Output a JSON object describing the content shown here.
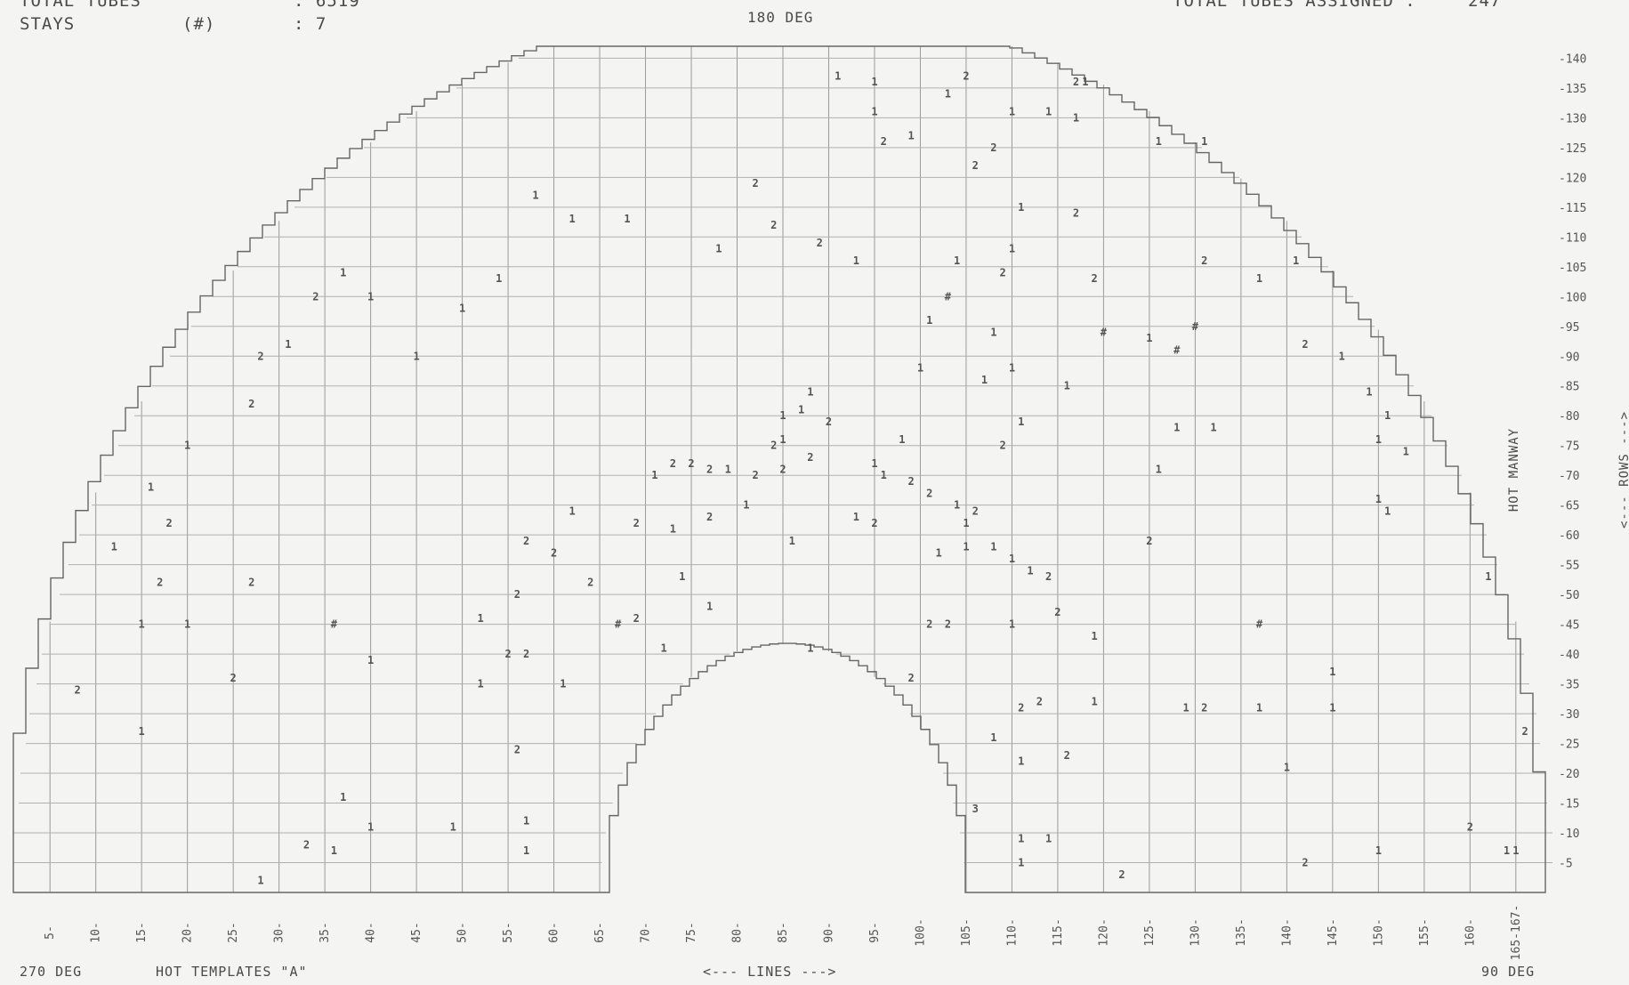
{
  "header": {
    "total_tubes_label": "TOTAL TUBES",
    "total_tubes_value": ": 6519",
    "stays_label": "STAYS",
    "stays_symbol": "(#)",
    "stays_value": ": 7",
    "top_angle": "180 DEG",
    "assigned_label": "TOTAL TUBES ASSIGNED :",
    "assigned_value": "247"
  },
  "footer": {
    "left_angle": "270 DEG",
    "template_name": "HOT TEMPLATES \"A\"",
    "lines_axis": "<--- LINES --->",
    "right_angle": "90 DEG"
  },
  "side": {
    "hot_manway": "HOT MANWAY",
    "rows_axis": "<--- ROWS --->"
  },
  "rows_axis_labels": [
    "-140",
    "-135",
    "-130",
    "-125",
    "-120",
    "-115",
    "-110",
    "-105",
    "-100",
    "-95",
    "-90",
    "-85",
    "-80",
    "-75",
    "-70",
    "-65",
    "-60",
    "-55",
    "-50",
    "-45",
    "-40",
    "-35",
    "-30",
    "-25",
    "-20",
    "-15",
    "-10",
    "-5"
  ],
  "lines_axis_labels": [
    "5-",
    "10-",
    "15-",
    "20-",
    "25-",
    "30-",
    "35-",
    "40-",
    "45-",
    "50-",
    "55-",
    "60-",
    "65-",
    "70-",
    "75-",
    "80-",
    "85-",
    "90-",
    "95-",
    "100-",
    "105-",
    "110-",
    "115-",
    "120-",
    "125-",
    "130-",
    "135-",
    "140-",
    "145-",
    "150-",
    "155-",
    "160-",
    "165-167-"
  ],
  "tube_marks": [
    {
      "line": 126,
      "row": 126,
      "label": "1"
    },
    {
      "line": 131,
      "row": 126,
      "label": "1"
    },
    {
      "line": 118,
      "row": 136,
      "label": "1"
    },
    {
      "line": 117,
      "row": 130,
      "label": "1"
    },
    {
      "line": 117,
      "row": 136,
      "label": "2"
    },
    {
      "line": 110,
      "row": 131,
      "label": "1"
    },
    {
      "line": 114,
      "row": 131,
      "label": "1"
    },
    {
      "line": 105,
      "row": 137,
      "label": "2"
    },
    {
      "line": 91,
      "row": 137,
      "label": "1"
    },
    {
      "line": 95,
      "row": 136,
      "label": "1"
    },
    {
      "line": 95,
      "row": 131,
      "label": "1"
    },
    {
      "line": 96,
      "row": 126,
      "label": "2"
    },
    {
      "line": 99,
      "row": 127,
      "label": "1"
    },
    {
      "line": 103,
      "row": 134,
      "label": "1"
    },
    {
      "line": 108,
      "row": 125,
      "label": "2"
    },
    {
      "line": 106,
      "row": 122,
      "label": "2"
    },
    {
      "line": 111,
      "row": 115,
      "label": "1"
    },
    {
      "line": 117,
      "row": 114,
      "label": "2"
    },
    {
      "line": 110,
      "row": 108,
      "label": "1"
    },
    {
      "line": 109,
      "row": 104,
      "label": "2"
    },
    {
      "line": 104,
      "row": 106,
      "label": "1"
    },
    {
      "line": 103,
      "row": 100,
      "label": "#"
    },
    {
      "line": 101,
      "row": 96,
      "label": "1"
    },
    {
      "line": 93,
      "row": 106,
      "label": "1"
    },
    {
      "line": 89,
      "row": 109,
      "label": "2"
    },
    {
      "line": 84,
      "row": 112,
      "label": "2"
    },
    {
      "line": 82,
      "row": 119,
      "label": "2"
    },
    {
      "line": 78,
      "row": 108,
      "label": "1"
    },
    {
      "line": 68,
      "row": 113,
      "label": "1"
    },
    {
      "line": 62,
      "row": 113,
      "label": "1"
    },
    {
      "line": 58,
      "row": 117,
      "label": "1"
    },
    {
      "line": 54,
      "row": 103,
      "label": "1"
    },
    {
      "line": 50,
      "row": 98,
      "label": "1"
    },
    {
      "line": 45,
      "row": 90,
      "label": "1"
    },
    {
      "line": 40,
      "row": 100,
      "label": "1"
    },
    {
      "line": 37,
      "row": 104,
      "label": "1"
    },
    {
      "line": 34,
      "row": 100,
      "label": "2"
    },
    {
      "line": 31,
      "row": 92,
      "label": "1"
    },
    {
      "line": 28,
      "row": 90,
      "label": "2"
    },
    {
      "line": 27,
      "row": 82,
      "label": "2"
    },
    {
      "line": 20,
      "row": 75,
      "label": "1"
    },
    {
      "line": 16,
      "row": 68,
      "label": "1"
    },
    {
      "line": 18,
      "row": 62,
      "label": "2"
    },
    {
      "line": 12,
      "row": 58,
      "label": "1"
    },
    {
      "line": 17,
      "row": 52,
      "label": "2"
    },
    {
      "line": 27,
      "row": 52,
      "label": "2"
    },
    {
      "line": 15,
      "row": 45,
      "label": "1"
    },
    {
      "line": 20,
      "row": 45,
      "label": "1"
    },
    {
      "line": 36,
      "row": 45,
      "label": "#"
    },
    {
      "line": 40,
      "row": 39,
      "label": "1"
    },
    {
      "line": 25,
      "row": 36,
      "label": "2"
    },
    {
      "line": 8,
      "row": 34,
      "label": "2"
    },
    {
      "line": 15,
      "row": 27,
      "label": "1"
    },
    {
      "line": 37,
      "row": 16,
      "label": "1"
    },
    {
      "line": 40,
      "row": 11,
      "label": "1"
    },
    {
      "line": 49,
      "row": 11,
      "label": "1"
    },
    {
      "line": 57,
      "row": 12,
      "label": "1"
    },
    {
      "line": 33,
      "row": 8,
      "label": "2"
    },
    {
      "line": 36,
      "row": 7,
      "label": "1"
    },
    {
      "line": 28,
      "row": 2,
      "label": "1"
    },
    {
      "line": 57,
      "row": 7,
      "label": "1"
    },
    {
      "line": 52,
      "row": 35,
      "label": "1"
    },
    {
      "line": 56,
      "row": 24,
      "label": "2"
    },
    {
      "line": 61,
      "row": 35,
      "label": "1"
    },
    {
      "line": 55,
      "row": 40,
      "label": "2"
    },
    {
      "line": 57,
      "row": 40,
      "label": "2"
    },
    {
      "line": 52,
      "row": 46,
      "label": "1"
    },
    {
      "line": 56,
      "row": 50,
      "label": "2"
    },
    {
      "line": 57,
      "row": 59,
      "label": "2"
    },
    {
      "line": 60,
      "row": 57,
      "label": "2"
    },
    {
      "line": 64,
      "row": 52,
      "label": "2"
    },
    {
      "line": 62,
      "row": 64,
      "label": "1"
    },
    {
      "line": 67,
      "row": 45,
      "label": "#"
    },
    {
      "line": 69,
      "row": 46,
      "label": "2"
    },
    {
      "line": 72,
      "row": 41,
      "label": "1"
    },
    {
      "line": 74,
      "row": 53,
      "label": "1"
    },
    {
      "line": 77,
      "row": 48,
      "label": "1"
    },
    {
      "line": 69,
      "row": 62,
      "label": "2"
    },
    {
      "line": 73,
      "row": 61,
      "label": "1"
    },
    {
      "line": 77,
      "row": 63,
      "label": "2"
    },
    {
      "line": 81,
      "row": 65,
      "label": "1"
    },
    {
      "line": 71,
      "row": 70,
      "label": "1"
    },
    {
      "line": 73,
      "row": 72,
      "label": "2"
    },
    {
      "line": 75,
      "row": 72,
      "label": "2"
    },
    {
      "line": 77,
      "row": 71,
      "label": "2"
    },
    {
      "line": 79,
      "row": 71,
      "label": "1"
    },
    {
      "line": 82,
      "row": 70,
      "label": "2"
    },
    {
      "line": 85,
      "row": 71,
      "label": "2"
    },
    {
      "line": 85,
      "row": 76,
      "label": "1"
    },
    {
      "line": 85,
      "row": 80,
      "label": "1"
    },
    {
      "line": 87,
      "row": 81,
      "label": "1"
    },
    {
      "line": 88,
      "row": 84,
      "label": "1"
    },
    {
      "line": 84,
      "row": 75,
      "label": "2"
    },
    {
      "line": 88,
      "row": 73,
      "label": "2"
    },
    {
      "line": 90,
      "row": 79,
      "label": "2"
    },
    {
      "line": 86,
      "row": 59,
      "label": "1"
    },
    {
      "line": 96,
      "row": 70,
      "label": "1"
    },
    {
      "line": 99,
      "row": 69,
      "label": "2"
    },
    {
      "line": 101,
      "row": 67,
      "label": "2"
    },
    {
      "line": 104,
      "row": 65,
      "label": "1"
    },
    {
      "line": 106,
      "row": 64,
      "label": "2"
    },
    {
      "line": 105,
      "row": 62,
      "label": "1"
    },
    {
      "line": 105,
      "row": 58,
      "label": "1"
    },
    {
      "line": 108,
      "row": 58,
      "label": "1"
    },
    {
      "line": 102,
      "row": 57,
      "label": "1"
    },
    {
      "line": 110,
      "row": 56,
      "label": "1"
    },
    {
      "line": 112,
      "row": 54,
      "label": "1"
    },
    {
      "line": 114,
      "row": 53,
      "label": "2"
    },
    {
      "line": 115,
      "row": 47,
      "label": "2"
    },
    {
      "line": 119,
      "row": 43,
      "label": "1"
    },
    {
      "line": 110,
      "row": 45,
      "label": "1"
    },
    {
      "line": 101,
      "row": 45,
      "label": "2"
    },
    {
      "line": 103,
      "row": 45,
      "label": "2"
    },
    {
      "line": 99,
      "row": 36,
      "label": "2"
    },
    {
      "line": 88,
      "row": 41,
      "label": "1"
    },
    {
      "line": 93,
      "row": 63,
      "label": "1"
    },
    {
      "line": 95,
      "row": 62,
      "label": "2"
    },
    {
      "line": 95,
      "row": 72,
      "label": "1"
    },
    {
      "line": 98,
      "row": 76,
      "label": "1"
    },
    {
      "line": 109,
      "row": 75,
      "label": "2"
    },
    {
      "line": 111,
      "row": 79,
      "label": "1"
    },
    {
      "line": 107,
      "row": 86,
      "label": "1"
    },
    {
      "line": 110,
      "row": 88,
      "label": "1"
    },
    {
      "line": 116,
      "row": 85,
      "label": "1"
    },
    {
      "line": 100,
      "row": 88,
      "label": "1"
    },
    {
      "line": 108,
      "row": 94,
      "label": "1"
    },
    {
      "line": 120,
      "row": 94,
      "label": "#"
    },
    {
      "line": 125,
      "row": 93,
      "label": "1"
    },
    {
      "line": 128,
      "row": 91,
      "label": "#"
    },
    {
      "line": 119,
      "row": 103,
      "label": "2"
    },
    {
      "line": 131,
      "row": 106,
      "label": "2"
    },
    {
      "line": 137,
      "row": 103,
      "label": "1"
    },
    {
      "line": 141,
      "row": 106,
      "label": "1"
    },
    {
      "line": 142,
      "row": 92,
      "label": "2"
    },
    {
      "line": 146,
      "row": 90,
      "label": "1"
    },
    {
      "line": 149,
      "row": 84,
      "label": "1"
    },
    {
      "line": 151,
      "row": 80,
      "label": "1"
    },
    {
      "line": 150,
      "row": 76,
      "label": "1"
    },
    {
      "line": 153,
      "row": 74,
      "label": "1"
    },
    {
      "line": 150,
      "row": 66,
      "label": "1"
    },
    {
      "line": 126,
      "row": 71,
      "label": "1"
    },
    {
      "line": 128,
      "row": 78,
      "label": "1"
    },
    {
      "line": 132,
      "row": 78,
      "label": "1"
    },
    {
      "line": 125,
      "row": 59,
      "label": "2"
    },
    {
      "line": 137,
      "row": 45,
      "label": "#"
    },
    {
      "line": 145,
      "row": 37,
      "label": "1"
    },
    {
      "line": 145,
      "row": 31,
      "label": "1"
    },
    {
      "line": 137,
      "row": 31,
      "label": "1"
    },
    {
      "line": 129,
      "row": 31,
      "label": "1"
    },
    {
      "line": 131,
      "row": 31,
      "label": "2"
    },
    {
      "line": 119,
      "row": 32,
      "label": "1"
    },
    {
      "line": 113,
      "row": 32,
      "label": "2"
    },
    {
      "line": 111,
      "row": 31,
      "label": "2"
    },
    {
      "line": 108,
      "row": 26,
      "label": "1"
    },
    {
      "line": 111,
      "row": 22,
      "label": "1"
    },
    {
      "line": 116,
      "row": 23,
      "label": "2"
    },
    {
      "line": 140,
      "row": 21,
      "label": "1"
    },
    {
      "line": 106,
      "row": 14,
      "label": "3"
    },
    {
      "line": 111,
      "row": 9,
      "label": "1"
    },
    {
      "line": 114,
      "row": 9,
      "label": "1"
    },
    {
      "line": 111,
      "row": 5,
      "label": "1"
    },
    {
      "line": 122,
      "row": 3,
      "label": "2"
    },
    {
      "line": 142,
      "row": 5,
      "label": "2"
    },
    {
      "line": 150,
      "row": 7,
      "label": "1"
    },
    {
      "line": 160,
      "row": 11,
      "label": "2"
    },
    {
      "line": 164,
      "row": 7,
      "label": "1"
    },
    {
      "line": 166,
      "row": 27,
      "label": "2"
    },
    {
      "line": 165,
      "row": 7,
      "label": "1"
    },
    {
      "line": 162,
      "row": 53,
      "label": "1"
    },
    {
      "line": 130,
      "row": 95,
      "label": "#"
    },
    {
      "line": 151,
      "row": 64,
      "label": "1"
    }
  ]
}
